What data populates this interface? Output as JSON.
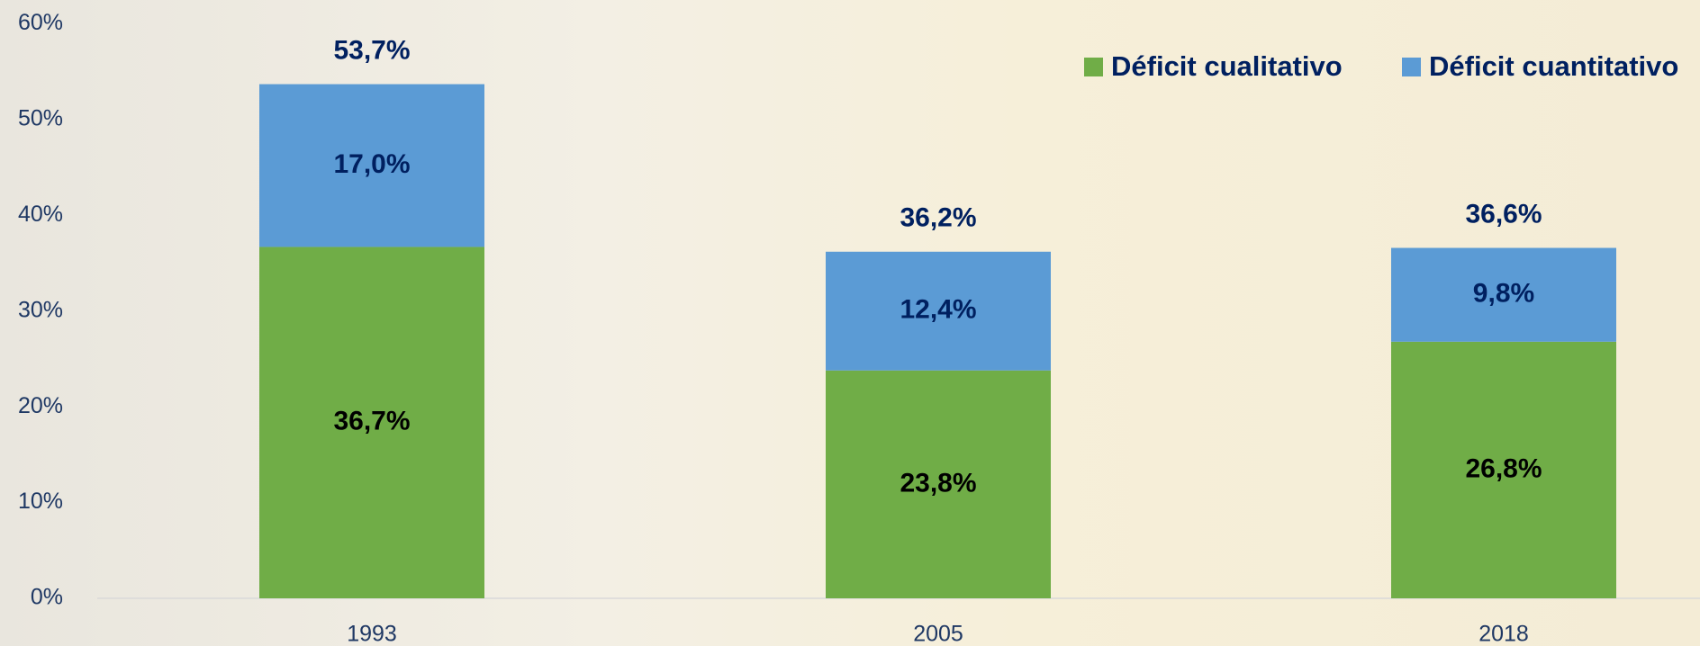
{
  "chart_data": {
    "type": "stacked_bar",
    "categories": [
      "1993",
      "2005",
      "2018"
    ],
    "series": [
      {
        "name": "Déficit cualitativo",
        "color": "#70ad47",
        "values": [
          36.7,
          23.8,
          26.8
        ],
        "value_labels": [
          "36,7%",
          "23,8%",
          "26,8%"
        ]
      },
      {
        "name": "Déficit cuantitativo",
        "color": "#5b9bd5",
        "values": [
          17.0,
          12.4,
          9.8
        ],
        "value_labels": [
          "17,0%",
          "12,4%",
          "9,8%"
        ]
      }
    ],
    "totals": [
      53.7,
      36.2,
      36.6
    ],
    "total_labels": [
      "53,7%",
      "36,2%",
      "36,6%"
    ],
    "ylim": [
      0,
      60
    ],
    "yticks": [
      {
        "value": 0,
        "label": "0%"
      },
      {
        "value": 10,
        "label": "10%"
      },
      {
        "value": 20,
        "label": "20%"
      },
      {
        "value": 30,
        "label": "30%"
      },
      {
        "value": 40,
        "label": "40%"
      },
      {
        "value": 50,
        "label": "50%"
      },
      {
        "value": 60,
        "label": "60%"
      }
    ],
    "grid": false,
    "legend": "top-right"
  }
}
